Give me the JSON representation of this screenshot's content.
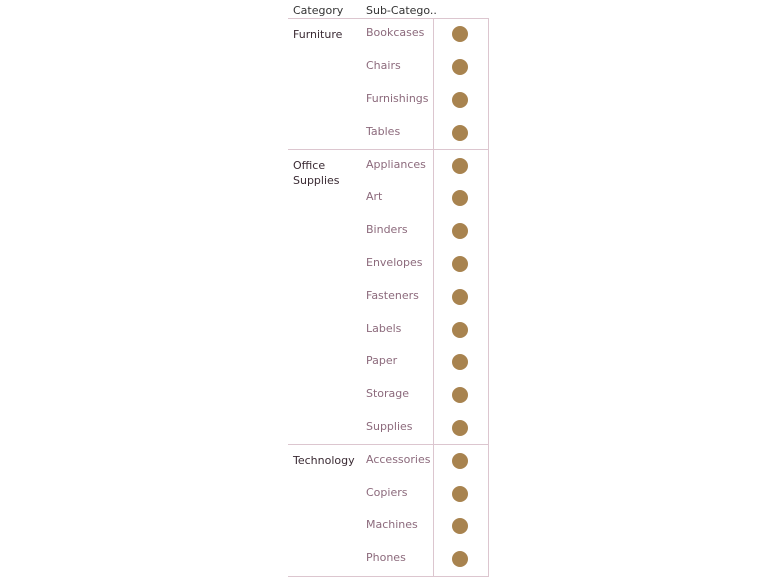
{
  "headers": {
    "category": "Category",
    "subcategory": "Sub-Catego.."
  },
  "chart_data": {
    "type": "table",
    "mark": "circle",
    "mark_color": "#a8834f",
    "groups": [
      {
        "category": "Furniture",
        "subcategories": [
          "Bookcases",
          "Chairs",
          "Furnishings",
          "Tables"
        ]
      },
      {
        "category": "Office Supplies",
        "subcategories": [
          "Appliances",
          "Art",
          "Binders",
          "Envelopes",
          "Fasteners",
          "Labels",
          "Paper",
          "Storage",
          "Supplies"
        ]
      },
      {
        "category": "Technology",
        "subcategories": [
          "Accessories",
          "Copiers",
          "Machines",
          "Phones"
        ]
      }
    ]
  }
}
